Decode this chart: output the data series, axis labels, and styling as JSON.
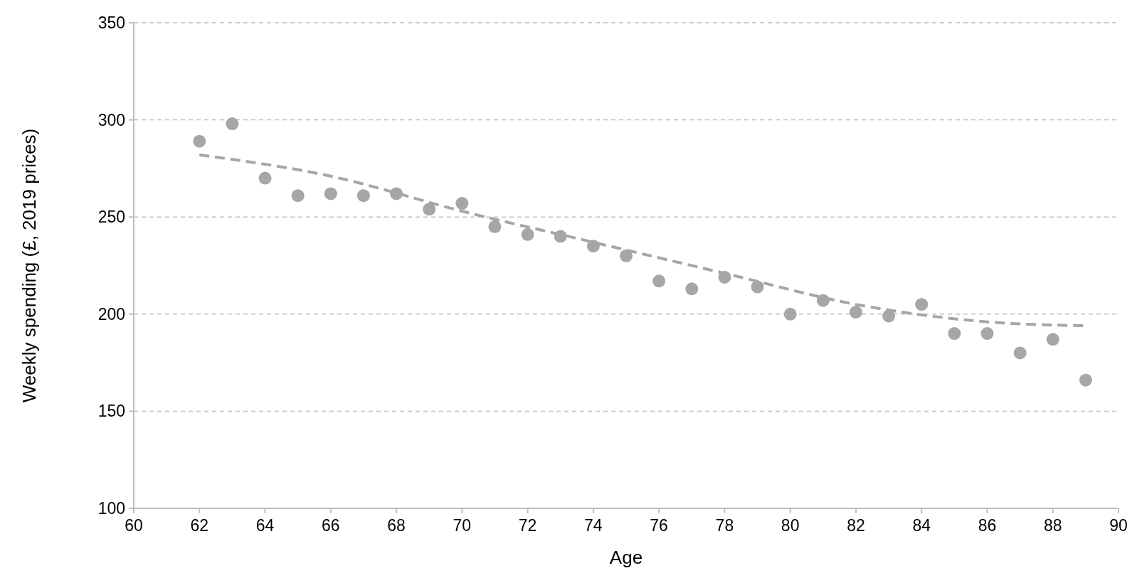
{
  "chart_data": {
    "type": "scatter",
    "xlabel": "Age",
    "ylabel": "Weekly spending (£, 2019 prices)",
    "xlim": [
      60,
      90
    ],
    "xticks": [
      60,
      62,
      64,
      66,
      68,
      70,
      72,
      74,
      76,
      78,
      80,
      82,
      84,
      86,
      88,
      90
    ],
    "ylim": [
      100,
      350
    ],
    "yticks": [
      100,
      150,
      200,
      250,
      300,
      350
    ],
    "grid": "y",
    "series": [
      {
        "marker": "circle",
        "color": "#a6a6a6",
        "x": [
          62,
          63,
          64,
          65,
          66,
          67,
          68,
          69,
          70,
          71,
          72,
          73,
          74,
          75,
          76,
          77,
          78,
          79,
          80,
          81,
          82,
          83,
          84,
          85,
          86,
          87,
          88,
          89
        ],
        "values": [
          289,
          298,
          270,
          261,
          262,
          261,
          262,
          254,
          257,
          245,
          241,
          240,
          235,
          230,
          217,
          213,
          219,
          214,
          200,
          207,
          201,
          199,
          205,
          190,
          190,
          180,
          187,
          166
        ]
      },
      {
        "type": "line",
        "color": "#a6a6a6",
        "line_style": "dashed",
        "x": [
          62,
          66,
          70,
          74,
          78,
          82,
          86,
          89
        ],
        "values": [
          282,
          271,
          253,
          237,
          221,
          205,
          196,
          194
        ]
      }
    ]
  }
}
